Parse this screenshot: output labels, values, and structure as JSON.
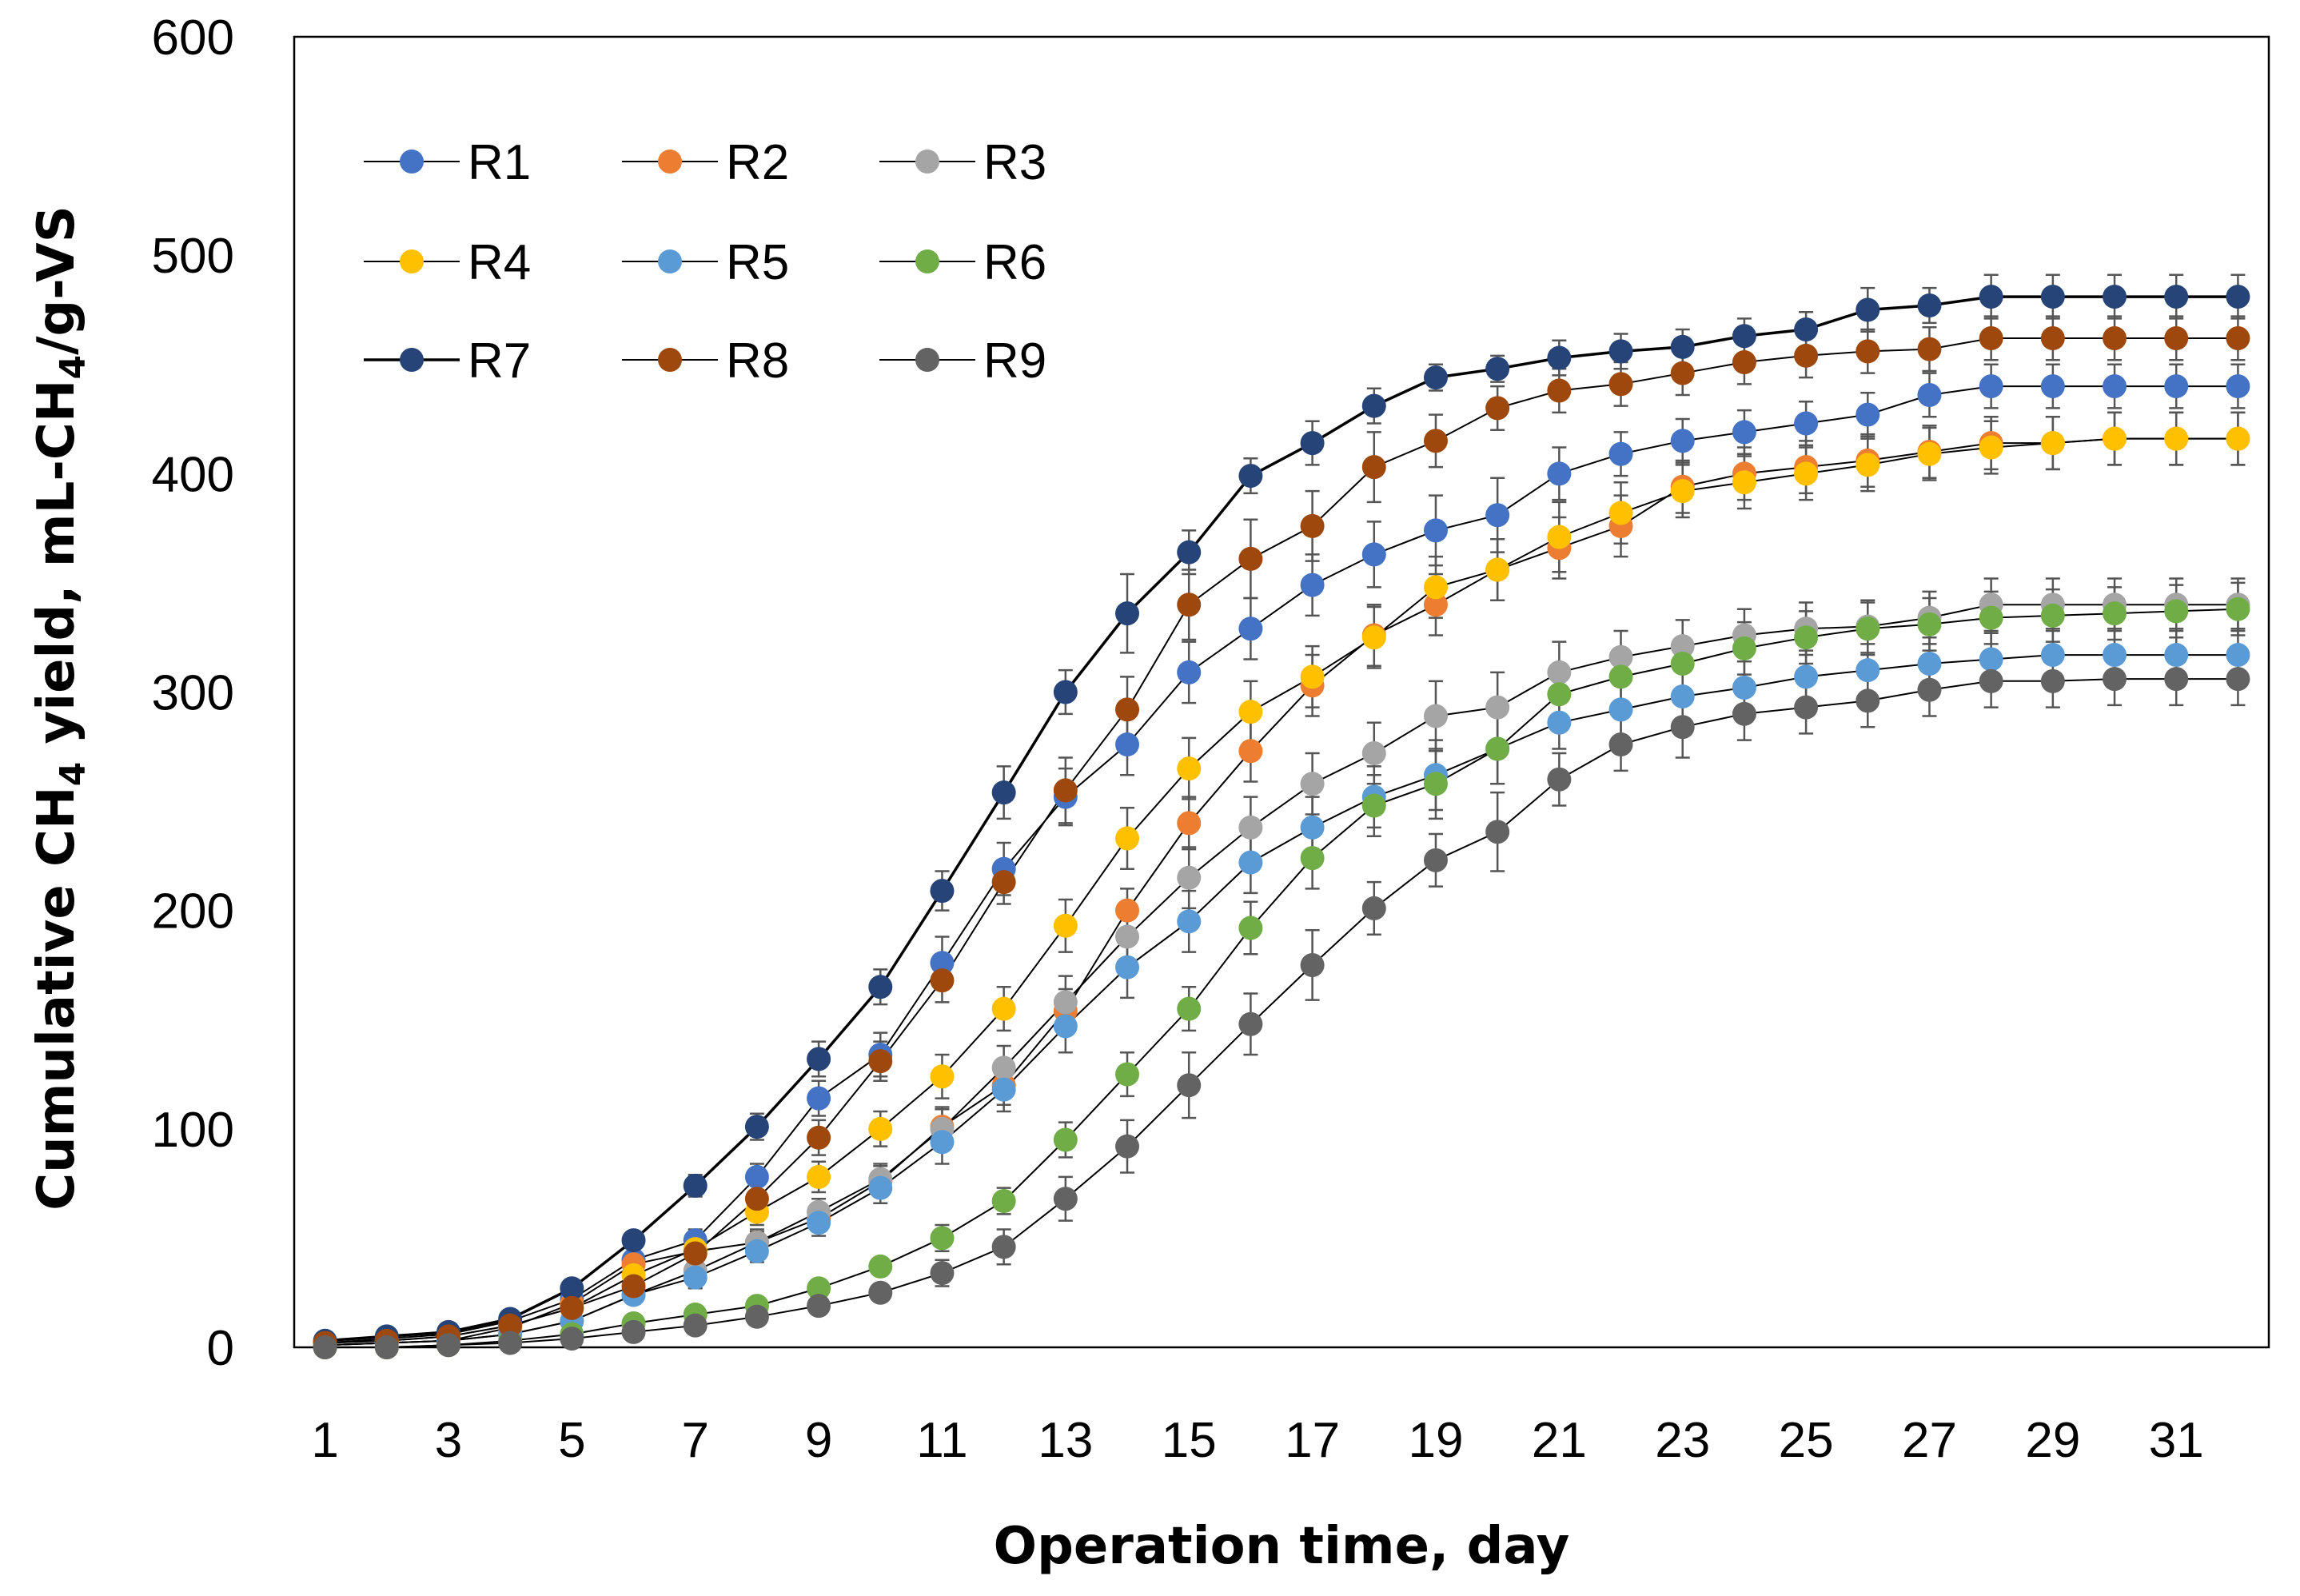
{
  "chart_data": {
    "type": "line",
    "title": "",
    "xlabel": "Operation time, day",
    "ylabel_parts": [
      "Cumulative CH",
      "4",
      " yield, mL-CH",
      "4",
      "/g-VS"
    ],
    "xlim": [
      0.5,
      32.5
    ],
    "ylim": [
      0,
      600
    ],
    "x_ticks": [
      1,
      3,
      5,
      7,
      9,
      11,
      13,
      15,
      17,
      19,
      21,
      23,
      25,
      27,
      29,
      31
    ],
    "y_ticks": [
      0,
      100,
      200,
      300,
      400,
      500,
      600
    ],
    "grid": false,
    "legend_position": "top-left",
    "x": [
      1,
      2,
      3,
      4,
      5,
      6,
      7,
      8,
      9,
      10,
      11,
      12,
      13,
      14,
      15,
      16,
      17,
      18,
      19,
      20,
      21,
      22,
      23,
      24,
      25,
      26,
      27,
      28,
      29,
      30,
      31,
      32
    ],
    "series": [
      {
        "name": "R1",
        "color": "#4472C4",
        "line_color": "#000000",
        "values": [
          2,
          4,
          6,
          12,
          22,
          40,
          49,
          78,
          114,
          134,
          176,
          219,
          252,
          276,
          309,
          329,
          349,
          363,
          374,
          381,
          400,
          409,
          415,
          419,
          423,
          427,
          436,
          440,
          440,
          440,
          440,
          440
        ],
        "errors": [
          1,
          1,
          1,
          2,
          3,
          4,
          5,
          6,
          8,
          10,
          12,
          12,
          13,
          14,
          14,
          14,
          14,
          15,
          16,
          17,
          12,
          10,
          10,
          10,
          10,
          10,
          10,
          10,
          10,
          10,
          10,
          10
        ]
      },
      {
        "name": "R2",
        "color": "#ED7D31",
        "line_color": "#000000",
        "values": [
          1,
          2,
          3,
          9,
          20,
          38,
          44,
          48,
          59,
          76,
          101,
          120,
          154,
          200,
          240,
          273,
          303,
          326,
          340,
          356,
          366,
          376,
          394,
          400,
          403,
          406,
          410,
          414,
          414,
          416,
          416,
          416
        ],
        "errors": [
          1,
          1,
          1,
          2,
          3,
          4,
          5,
          6,
          6,
          7,
          8,
          9,
          10,
          10,
          12,
          14,
          14,
          14,
          14,
          14,
          14,
          14,
          12,
          12,
          12,
          12,
          12,
          12,
          12,
          12,
          12,
          12
        ]
      },
      {
        "name": "R3",
        "color": "#A5A5A5",
        "line_color": "#000000",
        "values": [
          1,
          2,
          3,
          6,
          12,
          24,
          35,
          48,
          62,
          77,
          100,
          128,
          158,
          188,
          215,
          238,
          258,
          272,
          289,
          293,
          309,
          316,
          321,
          326,
          329,
          330,
          334,
          340,
          340,
          340,
          340,
          340
        ],
        "errors": [
          1,
          1,
          1,
          2,
          3,
          4,
          5,
          5,
          6,
          7,
          10,
          10,
          12,
          12,
          14,
          14,
          14,
          14,
          16,
          16,
          14,
          12,
          12,
          12,
          12,
          12,
          12,
          12,
          12,
          12,
          12,
          12
        ]
      },
      {
        "name": "R4",
        "color": "#FFC000",
        "line_color": "#000000",
        "values": [
          2,
          3,
          5,
          10,
          18,
          33,
          45,
          62,
          78,
          100,
          124,
          155,
          193,
          233,
          265,
          291,
          307,
          325,
          348,
          356,
          371,
          382,
          392,
          396,
          400,
          404,
          409,
          412,
          414,
          416,
          416,
          416
        ],
        "errors": [
          1,
          1,
          1,
          2,
          3,
          4,
          5,
          6,
          7,
          8,
          10,
          10,
          12,
          14,
          14,
          14,
          14,
          14,
          14,
          14,
          16,
          14,
          12,
          12,
          12,
          12,
          12,
          12,
          12,
          12,
          12,
          12
        ]
      },
      {
        "name": "R5",
        "color": "#5B9BD5",
        "line_color": "#000000",
        "values": [
          1,
          2,
          3,
          6,
          12,
          24,
          32,
          44,
          57,
          73,
          94,
          118,
          147,
          174,
          195,
          222,
          238,
          252,
          262,
          274,
          286,
          292,
          298,
          302,
          307,
          310,
          313,
          315,
          317,
          317,
          317,
          317
        ],
        "errors": [
          1,
          1,
          1,
          2,
          3,
          4,
          5,
          5,
          6,
          7,
          10,
          10,
          12,
          14,
          14,
          14,
          14,
          14,
          16,
          16,
          12,
          12,
          12,
          12,
          12,
          12,
          12,
          12,
          12,
          12,
          12,
          12
        ]
      },
      {
        "name": "R6",
        "color": "#70AD47",
        "line_color": "#000000",
        "values": [
          0,
          0,
          1,
          3,
          6,
          11,
          15,
          19,
          27,
          37,
          50,
          67,
          95,
          125,
          155,
          192,
          224,
          248,
          258,
          274,
          299,
          307,
          313,
          320,
          325,
          329,
          331,
          334,
          335,
          336,
          337,
          338
        ],
        "errors": [
          1,
          1,
          1,
          1,
          2,
          2,
          3,
          3,
          4,
          4,
          6,
          6,
          8,
          10,
          10,
          12,
          14,
          14,
          16,
          16,
          14,
          12,
          12,
          12,
          12,
          12,
          12,
          12,
          12,
          12,
          12,
          12
        ]
      },
      {
        "name": "R7",
        "color": "#264478",
        "line_color": "#000000",
        "values": [
          3,
          5,
          7,
          13,
          27,
          49,
          74,
          101,
          132,
          165,
          209,
          254,
          300,
          336,
          364,
          399,
          414,
          431,
          444,
          448,
          453,
          456,
          458,
          463,
          466,
          475,
          477,
          481,
          481,
          481,
          481,
          481
        ],
        "errors": [
          1,
          1,
          1,
          2,
          3,
          4,
          5,
          6,
          8,
          8,
          9,
          12,
          10,
          18,
          10,
          8,
          10,
          8,
          6,
          6,
          8,
          8,
          8,
          8,
          8,
          10,
          8,
          10,
          10,
          10,
          10,
          10
        ]
      },
      {
        "name": "R8",
        "color": "#9E480E",
        "line_color": "#000000",
        "values": [
          2,
          3,
          5,
          10,
          18,
          28,
          43,
          68,
          96,
          131,
          168,
          213,
          255,
          292,
          340,
          361,
          376,
          403,
          415,
          430,
          438,
          441,
          446,
          451,
          454,
          456,
          457,
          462,
          462,
          462,
          462,
          462
        ],
        "errors": [
          1,
          1,
          1,
          2,
          3,
          4,
          5,
          6,
          8,
          9,
          10,
          10,
          15,
          15,
          16,
          18,
          16,
          16,
          12,
          10,
          10,
          10,
          10,
          10,
          10,
          10,
          10,
          10,
          10,
          10,
          10,
          10
        ]
      },
      {
        "name": "R9",
        "color": "#636363",
        "line_color": "#000000",
        "values": [
          0,
          0,
          1,
          2,
          4,
          7,
          10,
          14,
          19,
          25,
          34,
          46,
          68,
          92,
          120,
          148,
          175,
          201,
          223,
          236,
          260,
          276,
          284,
          290,
          293,
          296,
          301,
          305,
          305,
          306,
          306,
          306
        ],
        "errors": [
          1,
          1,
          1,
          1,
          2,
          2,
          3,
          3,
          4,
          4,
          6,
          8,
          10,
          12,
          15,
          14,
          16,
          12,
          12,
          18,
          12,
          12,
          14,
          12,
          12,
          12,
          12,
          12,
          12,
          12,
          12,
          12
        ]
      }
    ]
  }
}
